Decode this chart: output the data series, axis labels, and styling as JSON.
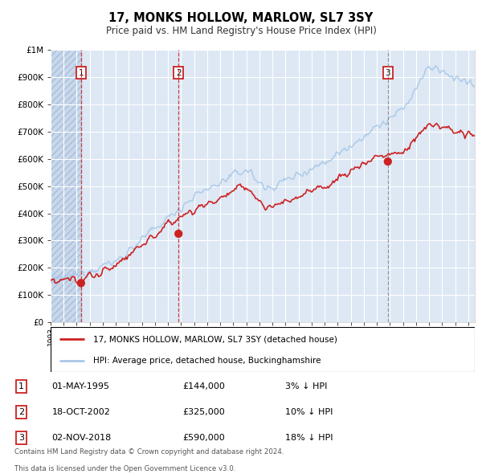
{
  "title": "17, MONKS HOLLOW, MARLOW, SL7 3SY",
  "subtitle": "Price paid vs. HM Land Registry's House Price Index (HPI)",
  "x_start_year": 1993,
  "x_end_year": 2025,
  "y_min": 0,
  "y_max": 1000000,
  "y_ticks": [
    0,
    100000,
    200000,
    300000,
    400000,
    500000,
    600000,
    700000,
    800000,
    900000,
    1000000
  ],
  "y_tick_labels": [
    "£0",
    "£100K",
    "£200K",
    "£300K",
    "£400K",
    "£500K",
    "£600K",
    "£700K",
    "£800K",
    "£900K",
    "£1M"
  ],
  "hpi_color": "#a8c8e8",
  "price_color": "#cc2222",
  "bg_color": "#dde8f4",
  "grid_color": "#ffffff",
  "sale1_year": 1995.33,
  "sale1_price": 144000,
  "sale2_year": 2002.8,
  "sale2_price": 325000,
  "sale3_year": 2018.84,
  "sale3_price": 590000,
  "legend_line1": "17, MONKS HOLLOW, MARLOW, SL7 3SY (detached house)",
  "legend_line2": "HPI: Average price, detached house, Buckinghamshire",
  "table_rows": [
    {
      "num": "1",
      "date": "01-MAY-1995",
      "price": "£144,000",
      "hpi": "3% ↓ HPI"
    },
    {
      "num": "2",
      "date": "18-OCT-2002",
      "price": "£325,000",
      "hpi": "10% ↓ HPI"
    },
    {
      "num": "3",
      "date": "02-NOV-2018",
      "price": "£590,000",
      "hpi": "18% ↓ HPI"
    }
  ],
  "footer_line1": "Contains HM Land Registry data © Crown copyright and database right 2024.",
  "footer_line2": "This data is licensed under the Open Government Licence v3.0."
}
